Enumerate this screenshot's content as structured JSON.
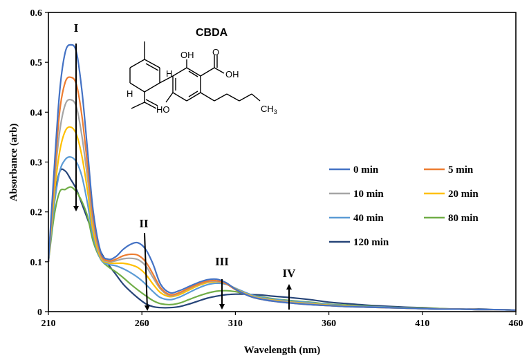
{
  "chart_data": {
    "type": "line",
    "xlabel": "Wavelength (nm)",
    "ylabel": "Absorbance (arb)",
    "xlim": [
      210,
      460
    ],
    "ylim": [
      0,
      0.6
    ],
    "x_ticks": [
      "210",
      "260",
      "310",
      "360",
      "410",
      "460"
    ],
    "y_ticks": [
      "0",
      "0.1",
      "0.2",
      "0.3",
      "0.4",
      "0.5",
      "0.6"
    ],
    "grid": false,
    "legend_position": "right",
    "inset_title": "CBDA",
    "molecule_labels": {
      "oh1": "OH",
      "oh2": "OH",
      "oh3": "HO",
      "carbonyl": "O",
      "h1": "H",
      "h2": "H",
      "methyl": "CH",
      "methyl_sub": "3"
    },
    "annotations": [
      "I",
      "II",
      "III",
      "IV"
    ],
    "x": [
      210,
      213,
      216,
      219,
      222,
      225,
      228,
      231,
      234,
      238,
      242,
      246,
      250,
      254,
      258,
      262,
      266,
      270,
      275,
      280,
      285,
      290,
      295,
      300,
      305,
      310,
      315,
      320,
      325,
      330,
      340,
      350,
      360,
      370,
      380,
      390,
      400,
      410,
      420,
      430,
      440,
      450,
      460
    ],
    "series": [
      {
        "name": "0 min",
        "color": "#4472C4",
        "values": [
          0.1,
          0.28,
          0.44,
          0.52,
          0.535,
          0.52,
          0.44,
          0.32,
          0.2,
          0.12,
          0.105,
          0.11,
          0.125,
          0.135,
          0.138,
          0.125,
          0.095,
          0.055,
          0.038,
          0.042,
          0.05,
          0.058,
          0.064,
          0.065,
          0.058,
          0.045,
          0.035,
          0.028,
          0.024,
          0.021,
          0.017,
          0.014,
          0.012,
          0.01,
          0.009,
          0.008,
          0.007,
          0.006,
          0.005,
          0.005,
          0.004,
          0.004,
          0.003
        ]
      },
      {
        "name": "5 min",
        "color": "#ED7D31",
        "values": [
          0.1,
          0.26,
          0.4,
          0.46,
          0.47,
          0.455,
          0.39,
          0.29,
          0.185,
          0.115,
          0.102,
          0.105,
          0.112,
          0.115,
          0.113,
          0.1,
          0.075,
          0.048,
          0.034,
          0.038,
          0.047,
          0.055,
          0.061,
          0.062,
          0.056,
          0.044,
          0.035,
          0.028,
          0.024,
          0.021,
          0.017,
          0.014,
          0.012,
          0.01,
          0.009,
          0.008,
          0.007,
          0.006,
          0.005,
          0.005,
          0.004,
          0.004,
          0.003
        ]
      },
      {
        "name": "10 min",
        "color": "#A5A5A5",
        "values": [
          0.1,
          0.25,
          0.36,
          0.415,
          0.425,
          0.41,
          0.35,
          0.265,
          0.175,
          0.112,
          0.1,
          0.102,
          0.106,
          0.107,
          0.104,
          0.092,
          0.068,
          0.045,
          0.032,
          0.037,
          0.046,
          0.054,
          0.06,
          0.061,
          0.056,
          0.045,
          0.036,
          0.029,
          0.025,
          0.022,
          0.018,
          0.015,
          0.012,
          0.01,
          0.009,
          0.008,
          0.007,
          0.006,
          0.005,
          0.005,
          0.004,
          0.004,
          0.003
        ]
      },
      {
        "name": "20 min",
        "color": "#FFC000",
        "values": [
          0.1,
          0.23,
          0.32,
          0.362,
          0.37,
          0.355,
          0.31,
          0.24,
          0.16,
          0.108,
          0.098,
          0.097,
          0.097,
          0.094,
          0.088,
          0.075,
          0.055,
          0.038,
          0.03,
          0.034,
          0.043,
          0.052,
          0.058,
          0.06,
          0.056,
          0.046,
          0.037,
          0.03,
          0.026,
          0.023,
          0.019,
          0.016,
          0.013,
          0.011,
          0.009,
          0.008,
          0.007,
          0.006,
          0.005,
          0.005,
          0.004,
          0.004,
          0.003
        ]
      },
      {
        "name": "40 min",
        "color": "#5B9BD5",
        "values": [
          0.1,
          0.21,
          0.28,
          0.305,
          0.31,
          0.3,
          0.27,
          0.215,
          0.15,
          0.105,
          0.095,
          0.092,
          0.086,
          0.078,
          0.068,
          0.055,
          0.04,
          0.028,
          0.024,
          0.029,
          0.038,
          0.047,
          0.054,
          0.057,
          0.055,
          0.047,
          0.039,
          0.032,
          0.028,
          0.025,
          0.021,
          0.018,
          0.014,
          0.012,
          0.01,
          0.009,
          0.007,
          0.006,
          0.005,
          0.005,
          0.004,
          0.004,
          0.003
        ]
      },
      {
        "name": "80 min",
        "color": "#70AD47",
        "values": [
          0.1,
          0.19,
          0.24,
          0.245,
          0.25,
          0.24,
          0.22,
          0.19,
          0.14,
          0.105,
          0.09,
          0.08,
          0.068,
          0.055,
          0.043,
          0.032,
          0.022,
          0.016,
          0.014,
          0.017,
          0.024,
          0.031,
          0.037,
          0.041,
          0.042,
          0.04,
          0.036,
          0.032,
          0.029,
          0.026,
          0.022,
          0.019,
          0.015,
          0.013,
          0.011,
          0.009,
          0.008,
          0.007,
          0.006,
          0.005,
          0.004,
          0.004,
          0.003
        ]
      },
      {
        "name": "120 min",
        "color": "#264478",
        "values": [
          0.1,
          0.22,
          0.28,
          0.282,
          0.265,
          0.245,
          0.215,
          0.185,
          0.155,
          0.12,
          0.095,
          0.075,
          0.055,
          0.04,
          0.027,
          0.016,
          0.01,
          0.008,
          0.008,
          0.01,
          0.015,
          0.021,
          0.027,
          0.031,
          0.034,
          0.035,
          0.035,
          0.034,
          0.033,
          0.031,
          0.028,
          0.024,
          0.019,
          0.016,
          0.013,
          0.011,
          0.009,
          0.008,
          0.006,
          0.005,
          0.005,
          0.004,
          0.003
        ]
      }
    ]
  }
}
